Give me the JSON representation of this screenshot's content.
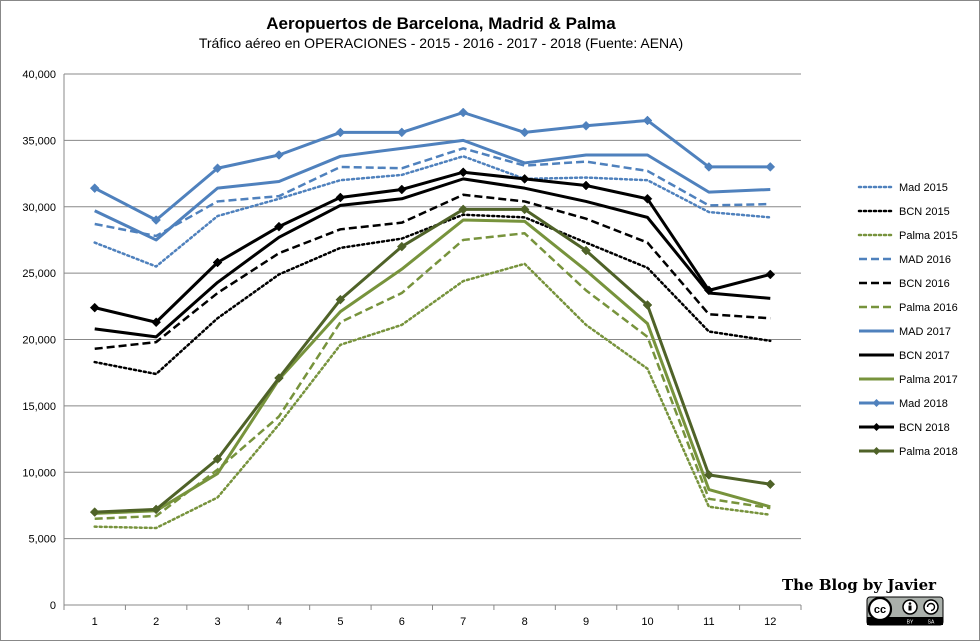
{
  "chart_data": {
    "type": "line",
    "title": "Aeropuertos de Barcelona, Madrid & Palma",
    "subtitle": "Tráfico aéreo en OPERACIONES  - 2015 - 2016 - 2017 - 2018 (Fuente:  AENA)",
    "xlabel": "",
    "ylabel": "",
    "categories": [
      "1",
      "2",
      "3",
      "4",
      "5",
      "6",
      "7",
      "8",
      "9",
      "10",
      "11",
      "12"
    ],
    "ylim": [
      0,
      40000
    ],
    "yticks": [
      "0",
      "5,000",
      "10,000",
      "15,000",
      "20,000",
      "25,000",
      "30,000",
      "35,000",
      "40,000"
    ],
    "grid": true,
    "legend_position": "right",
    "series": [
      {
        "name": "Mad 2015",
        "color": "#4f81bd",
        "style": "dotted",
        "marker": "none",
        "values": [
          27300,
          25500,
          29300,
          30600,
          32000,
          32400,
          33800,
          32100,
          32200,
          32000,
          29600,
          29200
        ]
      },
      {
        "name": "BCN 2015",
        "color": "#000000",
        "style": "dotted",
        "marker": "none",
        "values": [
          18300,
          17400,
          21600,
          24900,
          26900,
          27600,
          29400,
          29200,
          27300,
          25400,
          20600,
          19900
        ]
      },
      {
        "name": "Palma 2015",
        "color": "#77933c",
        "style": "dotted",
        "marker": "none",
        "values": [
          5900,
          5800,
          8100,
          13600,
          19600,
          21100,
          24400,
          25700,
          21100,
          17800,
          7400,
          6800
        ]
      },
      {
        "name": "MAD 2016",
        "color": "#4f81bd",
        "style": "dashed",
        "marker": "none",
        "values": [
          28700,
          27800,
          30400,
          30800,
          33000,
          32900,
          34400,
          33100,
          33400,
          32700,
          30100,
          30200
        ]
      },
      {
        "name": "BCN 2016",
        "color": "#000000",
        "style": "dashed",
        "marker": "none",
        "values": [
          19300,
          19800,
          23500,
          26500,
          28300,
          28800,
          30900,
          30400,
          29100,
          27300,
          21900,
          21600
        ]
      },
      {
        "name": "Palma 2016",
        "color": "#77933c",
        "style": "dashed",
        "marker": "none",
        "values": [
          6500,
          6700,
          10200,
          14200,
          21300,
          23500,
          27500,
          28000,
          23700,
          20200,
          8000,
          7300
        ]
      },
      {
        "name": "MAD 2017",
        "color": "#4f81bd",
        "style": "solid",
        "marker": "none",
        "values": [
          29700,
          27500,
          31400,
          31900,
          33800,
          34400,
          35000,
          33300,
          33900,
          33900,
          31100,
          31300
        ]
      },
      {
        "name": "BCN 2017",
        "color": "#000000",
        "style": "solid",
        "marker": "none",
        "values": [
          20800,
          20200,
          24300,
          27700,
          30100,
          30600,
          32100,
          31400,
          30400,
          29200,
          23500,
          23100
        ]
      },
      {
        "name": "Palma 2017",
        "color": "#77933c",
        "style": "solid",
        "marker": "none",
        "values": [
          6900,
          7100,
          9900,
          17000,
          22100,
          25300,
          29000,
          28900,
          25200,
          21200,
          8700,
          7400
        ]
      },
      {
        "name": "Mad 2018",
        "color": "#4f81bd",
        "style": "solid",
        "marker": "diamond",
        "values": [
          31400,
          29000,
          32900,
          33900,
          35600,
          35600,
          37100,
          35600,
          36100,
          36500,
          33000,
          33000
        ]
      },
      {
        "name": "BCN 2018",
        "color": "#000000",
        "style": "solid",
        "marker": "diamond",
        "values": [
          22400,
          21300,
          25800,
          28500,
          30700,
          31300,
          32600,
          32100,
          31600,
          30600,
          23700,
          24900
        ]
      },
      {
        "name": "Palma 2018",
        "color": "#4f6228",
        "style": "solid",
        "marker": "diamond",
        "values": [
          7000,
          7200,
          11000,
          17100,
          23000,
          27000,
          29800,
          29800,
          26700,
          22600,
          9800,
          9100
        ]
      }
    ]
  },
  "watermark": {
    "text": "The Blog by Javier",
    "license_badge": "cc-by-sa-icon",
    "license_labels": [
      "BY",
      "SA"
    ]
  }
}
